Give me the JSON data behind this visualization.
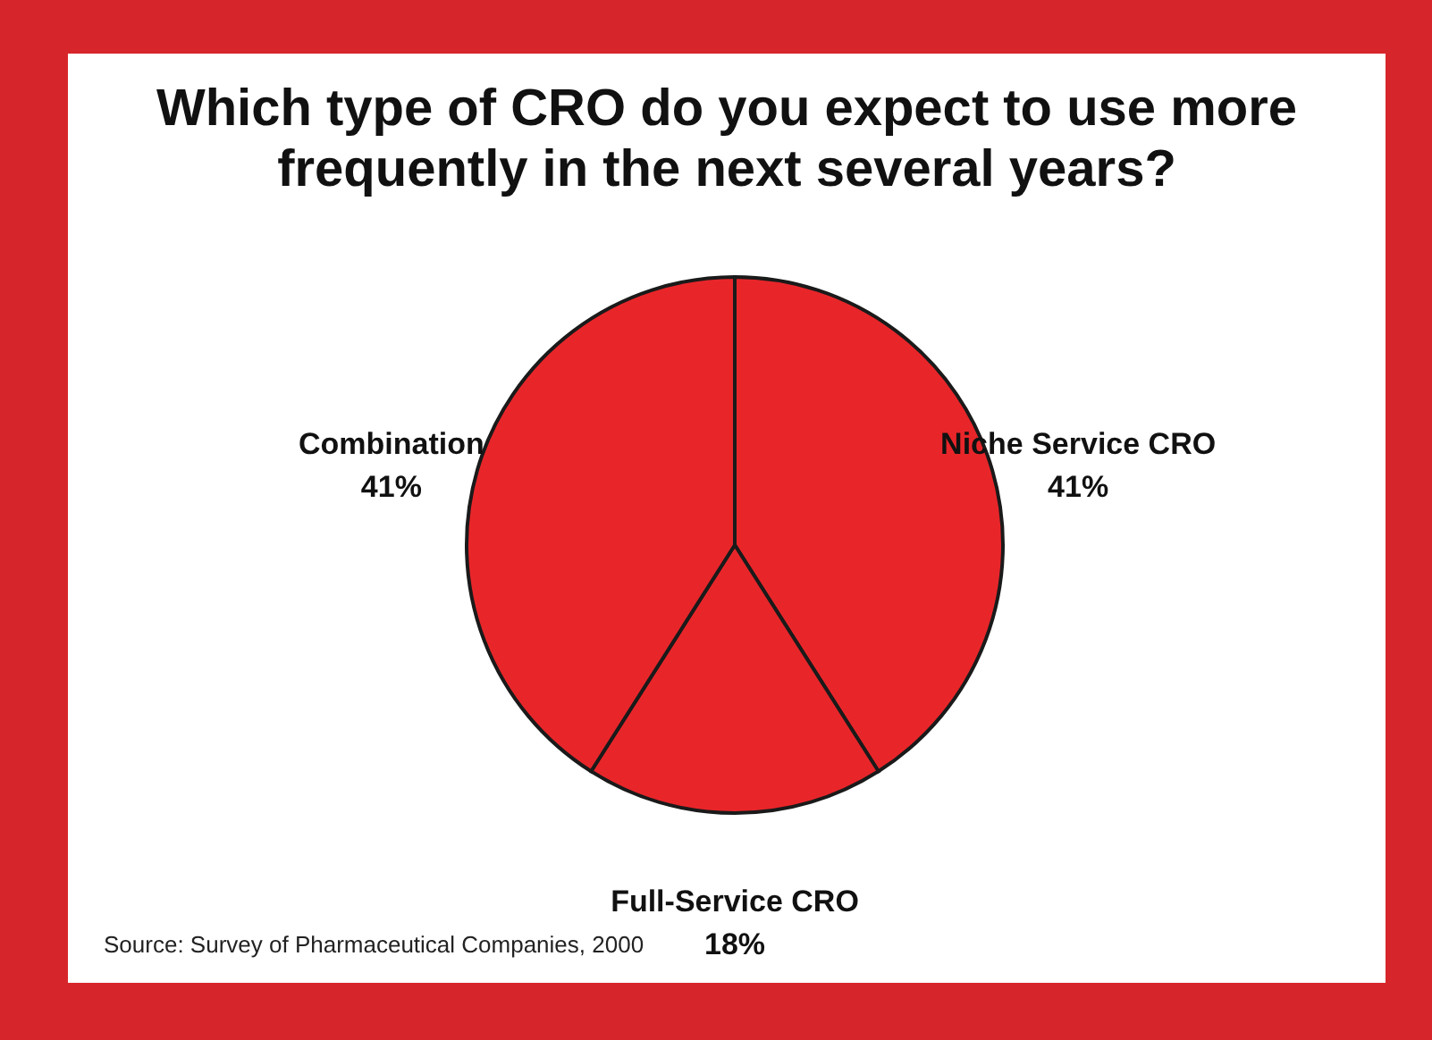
{
  "chart_data": {
    "type": "pie",
    "title": "Which type of CRO do you expect to use more frequently in the next several years?",
    "categories": [
      "Niche Service CRO",
      "Full-Service CRO",
      "Combination"
    ],
    "values": [
      41,
      18,
      41
    ],
    "value_labels": [
      "41%",
      "18%",
      "41%"
    ],
    "colors": [
      "#e8262a",
      "#e8262a",
      "#e8262a"
    ],
    "legend": false,
    "annotations": [
      "Source: Survey of Pharmaceutical Companies, 2000"
    ]
  }
}
